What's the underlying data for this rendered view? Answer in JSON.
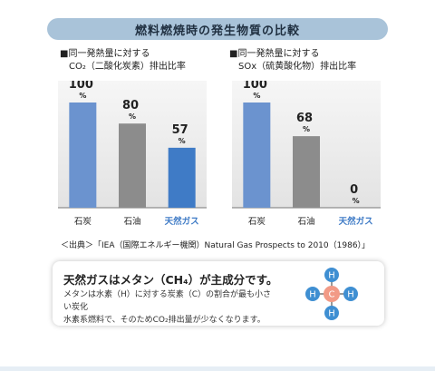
{
  "title": "燃料燃焼時の発生物質の比較",
  "chart_data": [
    {
      "type": "bar",
      "label_line1": "■同一発熱量に対する",
      "label_line2": "CO₂（二酸化炭素）排出比率",
      "categories": [
        "石炭",
        "石油",
        "天然ガス"
      ],
      "values": [
        100,
        80,
        57
      ],
      "unit": "%",
      "colors": [
        "#6b93cf",
        "#8c8c8c",
        "#3f7bc6"
      ],
      "category_colors": [
        "#222222",
        "#222222",
        "#3f7bc6"
      ],
      "ylim": [
        0,
        100
      ]
    },
    {
      "type": "bar",
      "label_line1": "■同一発熱量に対する",
      "label_line2": "SOx（硫黄酸化物）排出比率",
      "categories": [
        "石炭",
        "石油",
        "天然ガス"
      ],
      "values": [
        100,
        68,
        0
      ],
      "unit": "%",
      "colors": [
        "#6b93cf",
        "#8c8c8c",
        "#3f7bc6"
      ],
      "category_colors": [
        "#222222",
        "#222222",
        "#3f7bc6"
      ],
      "ylim": [
        0,
        100
      ]
    }
  ],
  "source": "＜出典＞「IEA（国際エネルギー機関）Natural Gas Prospects to 2010（1986）」",
  "info": {
    "heading": "天然ガスはメタン（CH₄）が主成分です。",
    "body_line1": "メタンは水素（H）に対する炭素（C）の割合が最も小さい炭化",
    "body_line2": "水素系燃料で、そのためCO₂排出量が少なくなります。"
  },
  "molecule": {
    "center": "C",
    "atoms": [
      "H",
      "H",
      "H",
      "H"
    ],
    "center_color": "#f29a86",
    "atom_color": "#3f8fd2"
  }
}
